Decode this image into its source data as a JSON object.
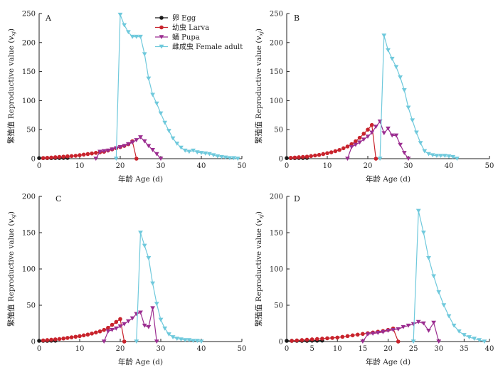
{
  "chart_data": [
    {
      "type": "line",
      "panel_label": "A",
      "xlabel": "年龄 Age (d)",
      "ylabel": "繁殖值 Reproductive value (v_xj)",
      "xlim": [
        0,
        50
      ],
      "ylim": [
        0,
        250
      ],
      "xticks": [
        0,
        10,
        20,
        30,
        40,
        50
      ],
      "yticks": [
        0,
        50,
        100,
        150,
        200,
        250
      ],
      "legend": "top-center",
      "series": [
        {
          "name": "卵 Egg",
          "stage": "egg",
          "x": [
            0,
            1,
            2,
            3,
            4,
            5,
            6,
            7
          ],
          "y": [
            1,
            1,
            1,
            1,
            1.2,
            1.2,
            1.3,
            1.3
          ]
        },
        {
          "name": "幼虫 Larva",
          "stage": "larva",
          "x": [
            1,
            2,
            3,
            4,
            5,
            6,
            7,
            8,
            9,
            10,
            11,
            12,
            13,
            14,
            15,
            16,
            17,
            18,
            19,
            20,
            21,
            22,
            23,
            24
          ],
          "y": [
            1,
            1.5,
            2,
            2.5,
            3,
            3.5,
            4,
            4.5,
            5,
            6,
            7,
            8,
            9,
            10,
            11,
            12,
            14,
            16,
            18,
            20,
            22,
            25,
            30,
            0
          ]
        },
        {
          "name": "蛹 Pupa",
          "stage": "pupa",
          "x": [
            14,
            15,
            16,
            17,
            18,
            19,
            20,
            21,
            22,
            23,
            24,
            25,
            26,
            27,
            28,
            29,
            30
          ],
          "y": [
            0,
            12,
            13,
            14,
            16,
            18,
            20,
            22,
            25,
            28,
            32,
            37,
            30,
            22,
            15,
            8,
            0
          ]
        },
        {
          "name": "雌成虫 Female adult",
          "stage": "adult",
          "x": [
            19,
            20,
            21,
            22,
            23,
            24,
            25,
            26,
            27,
            28,
            29,
            30,
            31,
            32,
            33,
            34,
            35,
            36,
            37,
            38,
            39,
            40,
            41,
            42,
            43,
            44,
            45,
            46,
            47,
            48,
            49
          ],
          "y": [
            0,
            248,
            230,
            218,
            210,
            210,
            210,
            180,
            138,
            110,
            95,
            78,
            62,
            48,
            35,
            26,
            19,
            14,
            12,
            14,
            11,
            10,
            9,
            8,
            6,
            4,
            3,
            2,
            1,
            1,
            0
          ]
        }
      ]
    },
    {
      "type": "line",
      "panel_label": "B",
      "xlabel": "年龄 Age (d)",
      "ylabel": "繁殖值 Reproductive value (v_xj)",
      "xlim": [
        0,
        50
      ],
      "ylim": [
        0,
        250
      ],
      "xticks": [
        0,
        10,
        20,
        30,
        40,
        50
      ],
      "yticks": [
        0,
        50,
        100,
        150,
        200,
        250
      ],
      "series": [
        {
          "name": "卵 Egg",
          "stage": "egg",
          "x": [
            0,
            1,
            2,
            3,
            4,
            5
          ],
          "y": [
            1,
            1,
            1,
            1.2,
            1.2,
            1.3
          ]
        },
        {
          "name": "幼虫 Larva",
          "stage": "larva",
          "x": [
            1,
            2,
            3,
            4,
            5,
            6,
            7,
            8,
            9,
            10,
            11,
            12,
            13,
            14,
            15,
            16,
            17,
            18,
            19,
            20,
            21,
            22
          ],
          "y": [
            1.5,
            2,
            2.5,
            3,
            3.5,
            4.5,
            5.5,
            6.5,
            8,
            9.5,
            11,
            13,
            15,
            18,
            21,
            25,
            30,
            36,
            43,
            50,
            58,
            0
          ]
        },
        {
          "name": "蛹 Pupa",
          "stage": "pupa",
          "x": [
            15,
            16,
            17,
            18,
            19,
            20,
            21,
            22,
            23,
            24,
            25,
            26,
            27,
            28,
            29,
            30
          ],
          "y": [
            0,
            20,
            24,
            28,
            33,
            38,
            45,
            55,
            64,
            44,
            52,
            40,
            40,
            24,
            10,
            0
          ]
        },
        {
          "name": "雌成虫 Female adult",
          "stage": "adult",
          "x": [
            23,
            24,
            25,
            26,
            27,
            28,
            29,
            30,
            31,
            32,
            33,
            34,
            35,
            36,
            37,
            38,
            39,
            40,
            41,
            42
          ],
          "y": [
            0,
            212,
            187,
            172,
            158,
            140,
            118,
            88,
            66,
            45,
            27,
            13,
            8,
            6,
            5,
            5,
            5,
            4,
            3,
            0
          ]
        }
      ]
    },
    {
      "type": "line",
      "panel_label": "C",
      "xlabel": "年龄 Age (d)",
      "ylabel": "繁殖值 Reproductive value (v_xj)",
      "xlim": [
        0,
        50
      ],
      "ylim": [
        0,
        200
      ],
      "xticks": [
        0,
        10,
        20,
        30,
        40,
        50
      ],
      "yticks": [
        0,
        50,
        100,
        150,
        200
      ],
      "series": [
        {
          "name": "卵 Egg",
          "stage": "egg",
          "x": [
            0,
            1,
            2,
            3,
            4
          ],
          "y": [
            1,
            1,
            1,
            1.2,
            1.2
          ]
        },
        {
          "name": "幼虫 Larva",
          "stage": "larva",
          "x": [
            1,
            2,
            3,
            4,
            5,
            6,
            7,
            8,
            9,
            10,
            11,
            12,
            13,
            14,
            15,
            16,
            17,
            18,
            19,
            20,
            21
          ],
          "y": [
            1.5,
            2,
            2.5,
            3,
            3.5,
            4.2,
            5,
            5.8,
            6.6,
            7.5,
            8.5,
            9.6,
            11,
            12.5,
            14,
            16,
            19,
            23,
            27,
            31,
            0
          ]
        },
        {
          "name": "蛹 Pupa",
          "stage": "pupa",
          "x": [
            16,
            17,
            18,
            19,
            20,
            21,
            22,
            23,
            24,
            25,
            26,
            27,
            28,
            29
          ],
          "y": [
            0,
            14,
            16,
            18,
            21,
            24,
            28,
            32,
            38,
            40,
            22,
            20,
            46,
            0
          ]
        },
        {
          "name": "雌成虫 Female adult",
          "stage": "adult",
          "x": [
            24,
            25,
            26,
            27,
            28,
            29,
            30,
            31,
            32,
            33,
            34,
            35,
            36,
            37,
            38,
            39,
            40
          ],
          "y": [
            0,
            150,
            132,
            115,
            80,
            52,
            30,
            18,
            10,
            6,
            4,
            3,
            2,
            2,
            1,
            1,
            0
          ]
        }
      ]
    },
    {
      "type": "line",
      "panel_label": "D",
      "xlabel": "年龄 Age (d)",
      "ylabel": "繁殖值 Reproductive value (v_xj)",
      "xlim": [
        0,
        40
      ],
      "ylim": [
        0,
        200
      ],
      "xticks": [
        0,
        5,
        10,
        15,
        20,
        25,
        30,
        35,
        40
      ],
      "yticks": [
        0,
        50,
        100,
        150,
        200
      ],
      "series": [
        {
          "name": "卵 Egg",
          "stage": "egg",
          "x": [
            0,
            1,
            2,
            3,
            4,
            5,
            6,
            7
          ],
          "y": [
            1,
            1,
            1,
            1,
            1,
            1.2,
            1.2,
            1.3
          ]
        },
        {
          "name": "幼虫 Larva",
          "stage": "larva",
          "x": [
            1,
            2,
            3,
            4,
            5,
            6,
            7,
            8,
            9,
            10,
            11,
            12,
            13,
            14,
            15,
            16,
            17,
            18,
            19,
            20,
            21,
            22
          ],
          "y": [
            1,
            1.5,
            2,
            2.5,
            3,
            3.5,
            4,
            4.5,
            5,
            5.5,
            6.5,
            7.5,
            8.5,
            9.5,
            10.5,
            11.5,
            12.5,
            13.5,
            14.5,
            16,
            18,
            0
          ]
        },
        {
          "name": "蛹 Pupa",
          "stage": "pupa",
          "x": [
            15,
            16,
            17,
            18,
            19,
            20,
            21,
            22,
            23,
            24,
            25,
            26,
            27,
            28,
            29,
            30
          ],
          "y": [
            0,
            10,
            11,
            12,
            13,
            15,
            16,
            17,
            20,
            22,
            24,
            27,
            25,
            15,
            26,
            0
          ]
        },
        {
          "name": "雌成虫 Female adult",
          "stage": "adult",
          "x": [
            25,
            26,
            27,
            28,
            29,
            30,
            31,
            32,
            33,
            34,
            35,
            36,
            37,
            38,
            39
          ],
          "y": [
            0,
            180,
            150,
            115,
            90,
            68,
            50,
            35,
            22,
            14,
            9,
            6,
            4,
            2,
            0
          ]
        }
      ]
    }
  ],
  "colors": {
    "egg": "#1a1a1a",
    "larva": "#c8232c",
    "pupa": "#9b2d90",
    "adult": "#6fc9dc",
    "axis": "#222222"
  }
}
